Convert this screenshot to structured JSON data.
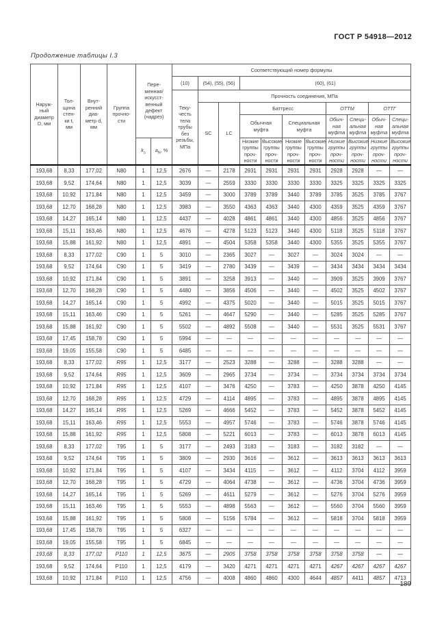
{
  "page": {
    "doc_number": "ГОСТ Р 54918—2012",
    "table_caption": "Продолжение таблицы I.3",
    "page_number": "189"
  },
  "header": {
    "outer_diameter": "Наруж-\nный\nдиаметр\nD, мм",
    "wall_thickness": "Тол-\nщина\nстен-\nки t,\nмм",
    "inner_diameter": "Внут-\nренний\nдиа-\nметр d,\nмм",
    "strength_group": "Группа\nпрочно-\nсти",
    "defect": "Пере-\nменная/\nискусст-\nвенный\nдефект\n(надрез)",
    "k_symbol": "k",
    "k_sub": "s",
    "a_symbol": "a",
    "a_sub": "N",
    "a_unit": ", %",
    "formula_title": "Соответствующий номер формулы",
    "formula_10": "(10)",
    "formula_54_56": "(54), (55), (56)",
    "formula_60_61": "(60), (61)",
    "body_yield": "Теку-\nчесть\nтела\nтрубы\nбез\nрезьбы,\nМПа",
    "joint_strength": "Прочность соединения, МПа",
    "sc": "SC",
    "lc": "LC",
    "buttress": "Баттресс",
    "ottm": "ОТТМ",
    "ottg": "ОТТГ",
    "regular_coupling": "Обычная\nмуфта",
    "special_coupling": "Специальная\nмуфта",
    "regular_coupling_narrow": "Обыч-\nная\nмуфта",
    "special_coupling_narrow": "Специ-\nальная\nмуфта",
    "low_groups": "Низкие\nгруппы\nпроч-\nности",
    "high_groups": "Высокие\nгруппы\nпроч-\nности"
  },
  "table": {
    "rows": [
      {
        "c": [
          "193,68",
          "8,33",
          "177,02",
          "N80",
          "1",
          "12,5",
          "2676",
          "—",
          "2178",
          "2931",
          "2931",
          "2931",
          "2931",
          "2928",
          "2928",
          "—",
          "—"
        ]
      },
      {
        "c": [
          "193,68",
          "9,52",
          "174,64",
          "N80",
          "1",
          "12,5",
          "3039",
          "—",
          "2559",
          "3330",
          "3330",
          "3330",
          "3330",
          "3325",
          "3325",
          "3325",
          "3325"
        ]
      },
      {
        "c": [
          "193,68",
          "10,92",
          "171,84",
          "N80",
          "1",
          "12,5",
          "3459",
          "—",
          "3000",
          "3789",
          "3789",
          "3440",
          "3789",
          "3785",
          "3525",
          "3785",
          "3767"
        ]
      },
      {
        "c": [
          "193,68",
          "12,70",
          "168,28",
          "N80",
          "1",
          "12,5",
          "3983",
          "—",
          "3550",
          "4363",
          "4363",
          "3440",
          "4300",
          "4359",
          "3525",
          "4359",
          "3767"
        ]
      },
      {
        "c": [
          "193,68",
          "14,27",
          "165,14",
          "N80",
          "1",
          "12,5",
          "4437",
          "—",
          "4028",
          "4861",
          "4861",
          "3440",
          "4300",
          "4856",
          "3525",
          "4856",
          "3767"
        ]
      },
      {
        "c": [
          "193,68",
          "15,11",
          "163,46",
          "N80",
          "1",
          "12,5",
          "4676",
          "—",
          "4278",
          "5123",
          "5123",
          "3440",
          "4300",
          "5118",
          "3525",
          "5118",
          "3767"
        ]
      },
      {
        "c": [
          "193,68",
          "15,88",
          "161,92",
          "N80",
          "1",
          "12,5",
          "4891",
          "—",
          "4504",
          "5358",
          "5358",
          "3440",
          "4300",
          "5355",
          "3525",
          "5355",
          "3767"
        ]
      },
      {
        "c": [
          "193,68",
          "8,33",
          "177,02",
          "C90",
          "1",
          "5",
          "3010",
          "—",
          "2365",
          "3027",
          "—",
          "3027",
          "—",
          "3024",
          "3024",
          "—",
          "—"
        ]
      },
      {
        "c": [
          "193,68",
          "9,52",
          "174,64",
          "C90",
          "1",
          "5",
          "3419",
          "—",
          "2780",
          "3439",
          "—",
          "3439",
          "—",
          "3434",
          "3434",
          "3434",
          "3434"
        ]
      },
      {
        "c": [
          "193,68",
          "10,92",
          "171,84",
          "C90",
          "1",
          "5",
          "3891",
          "—",
          "3258",
          "3913",
          "—",
          "3440",
          "—",
          "3909",
          "3525",
          "3909",
          "3767"
        ]
      },
      {
        "c": [
          "193,68",
          "12,70",
          "168,28",
          "C90",
          "1",
          "5",
          "4480",
          "—",
          "3856",
          "4506",
          "—",
          "3440",
          "—",
          "4502",
          "3525",
          "4502",
          "3767"
        ]
      },
      {
        "c": [
          "193,68",
          "14,27",
          "165,14",
          "C90",
          "1",
          "5",
          "4992",
          "—",
          "4375",
          "5020",
          "—",
          "3440",
          "—",
          "5015",
          "3525",
          "5015",
          "3767"
        ]
      },
      {
        "c": [
          "193,68",
          "15,11",
          "163,46",
          "C90",
          "1",
          "5",
          "5261",
          "—",
          "4647",
          "5290",
          "—",
          "3440",
          "—",
          "5285",
          "3525",
          "5285",
          "3767"
        ]
      },
      {
        "c": [
          "193,68",
          "15,88",
          "161,92",
          "C90",
          "1",
          "5",
          "5502",
          "—",
          "4892",
          "5508",
          "—",
          "3440",
          "—",
          "5531",
          "3525",
          "5531",
          "3767"
        ]
      },
      {
        "c": [
          "193,68",
          "17,45",
          "158,78",
          "C90",
          "1",
          "5",
          "5994",
          "—",
          "—",
          "—",
          "—",
          "—",
          "—",
          "—",
          "—",
          "—",
          "—"
        ]
      },
      {
        "c": [
          "193,68",
          "19,05",
          "155,58",
          "C90",
          "1",
          "5",
          "6485",
          "—",
          "—",
          "—",
          "—",
          "—",
          "—",
          "—",
          "—",
          "—",
          "—"
        ]
      },
      {
        "c": [
          "193,68",
          "8,33",
          "177,02",
          "R95",
          "1",
          "12,5",
          "3177",
          "—",
          "2523",
          "3288",
          "—",
          "3288",
          "—",
          "3288",
          "3288",
          "—",
          "—"
        ],
        "it": [
          3
        ]
      },
      {
        "c": [
          "193,68",
          "9,52",
          "174,64",
          "R95",
          "1",
          "12,5",
          "3609",
          "—",
          "2965",
          "3734",
          "—",
          "3734",
          "—",
          "3734",
          "3734",
          "3734",
          "3734"
        ],
        "it": [
          3
        ]
      },
      {
        "c": [
          "193,68",
          "10,92",
          "171,84",
          "R95",
          "1",
          "12,5",
          "4107",
          "—",
          "3476",
          "4250",
          "—",
          "3783",
          "—",
          "4250",
          "3878",
          "4250",
          "4145"
        ],
        "it": [
          3
        ]
      },
      {
        "c": [
          "193,68",
          "12,70",
          "168,28",
          "R95",
          "1",
          "12,5",
          "4729",
          "—",
          "4114",
          "4895",
          "—",
          "3783",
          "—",
          "4895",
          "3878",
          "4895",
          "4145"
        ],
        "it": [
          3
        ]
      },
      {
        "c": [
          "193,68",
          "14,27",
          "165,14",
          "R95",
          "1",
          "12,5",
          "5269",
          "—",
          "4666",
          "5452",
          "—",
          "3783",
          "—",
          "5452",
          "3878",
          "5452",
          "4145"
        ],
        "it": [
          3
        ]
      },
      {
        "c": [
          "193,68",
          "15,11",
          "163,46",
          "R95",
          "1",
          "12,5",
          "5553",
          "—",
          "4957",
          "5746",
          "—",
          "3783",
          "—",
          "5746",
          "3878",
          "5746",
          "4145"
        ],
        "it": [
          3
        ]
      },
      {
        "c": [
          "193,68",
          "15,88",
          "161,92",
          "R95",
          "1",
          "12,5",
          "5808",
          "—",
          "5221",
          "6013",
          "—",
          "3783",
          "—",
          "6013",
          "3878",
          "6013",
          "4145"
        ],
        "it": [
          3
        ]
      },
      {
        "c": [
          "193,68",
          "8,33",
          "177,02",
          "T95",
          "1",
          "5",
          "3177",
          "—",
          "2493",
          "3183",
          "—",
          "3183",
          "—",
          "3182",
          "3182",
          "—",
          "—"
        ]
      },
      {
        "c": [
          "193,68",
          "9,52",
          "174,64",
          "T95",
          "1",
          "5",
          "3809",
          "—",
          "2930",
          "3616",
          "—",
          "3612",
          "—",
          "3613",
          "3613",
          "3613",
          "3613"
        ]
      },
      {
        "c": [
          "193,68",
          "10,92",
          "171,84",
          "T95",
          "1",
          "5",
          "4107",
          "—",
          "3434",
          "4115",
          "—",
          "3612",
          "—",
          "4112",
          "3704",
          "4112",
          "3959"
        ]
      },
      {
        "c": [
          "193,68",
          "12,70",
          "168,28",
          "T95",
          "1",
          "5",
          "4729",
          "—",
          "4064",
          "4738",
          "—",
          "3612",
          "—",
          "4736",
          "3704",
          "4736",
          "3959"
        ]
      },
      {
        "c": [
          "193,68",
          "14,27",
          "165,14",
          "T95",
          "1",
          "5",
          "5269",
          "—",
          "4611",
          "5279",
          "—",
          "3612",
          "—",
          "5276",
          "3704",
          "5276",
          "3959"
        ]
      },
      {
        "c": [
          "193,68",
          "15,11",
          "163,46",
          "T95",
          "1",
          "5",
          "5553",
          "—",
          "4898",
          "5563",
          "—",
          "3612",
          "—",
          "5560",
          "3704",
          "5560",
          "3959"
        ]
      },
      {
        "c": [
          "193,68",
          "15,88",
          "161,92",
          "T95",
          "1",
          "5",
          "5808",
          "—",
          "5156",
          "5784",
          "—",
          "3612",
          "—",
          "5818",
          "3704",
          "5818",
          "3959"
        ]
      },
      {
        "c": [
          "193,68",
          "17,45",
          "158,78",
          "T95",
          "1",
          "5",
          "6327",
          "—",
          "—",
          "—",
          "—",
          "—",
          "—",
          "—",
          "—",
          "—",
          "—"
        ]
      },
      {
        "c": [
          "193,68",
          "19,05",
          "155,58",
          "T95",
          "1",
          "5",
          "6845",
          "—",
          "—",
          "—",
          "—",
          "—",
          "—",
          "—",
          "—",
          "—",
          "—"
        ]
      },
      {
        "c": [
          "193,68",
          "8,33",
          "177,02",
          "P110",
          "1",
          "12,5",
          "3675",
          "—",
          "2905",
          "3758",
          "3758",
          "3758",
          "3758",
          "3758",
          "3758",
          "—",
          "—"
        ],
        "it": "all"
      },
      {
        "c": [
          "193,68",
          "9,52",
          "174,64",
          "P110",
          "1",
          "12,5",
          "4179",
          "—",
          "3420",
          "4271",
          "4271",
          "4271",
          "4271",
          "4267",
          "4267",
          "4267",
          "4267"
        ],
        "it": [
          13,
          14,
          15,
          16
        ]
      },
      {
        "c": [
          "193,68",
          "10,92",
          "171,84",
          "P110",
          "1",
          "12,5",
          "4756",
          "—",
          "4008",
          "4860",
          "4860",
          "4300",
          "4644",
          "4857",
          "4411",
          "4857",
          "4713"
        ],
        "it": [
          13,
          15
        ]
      }
    ]
  }
}
